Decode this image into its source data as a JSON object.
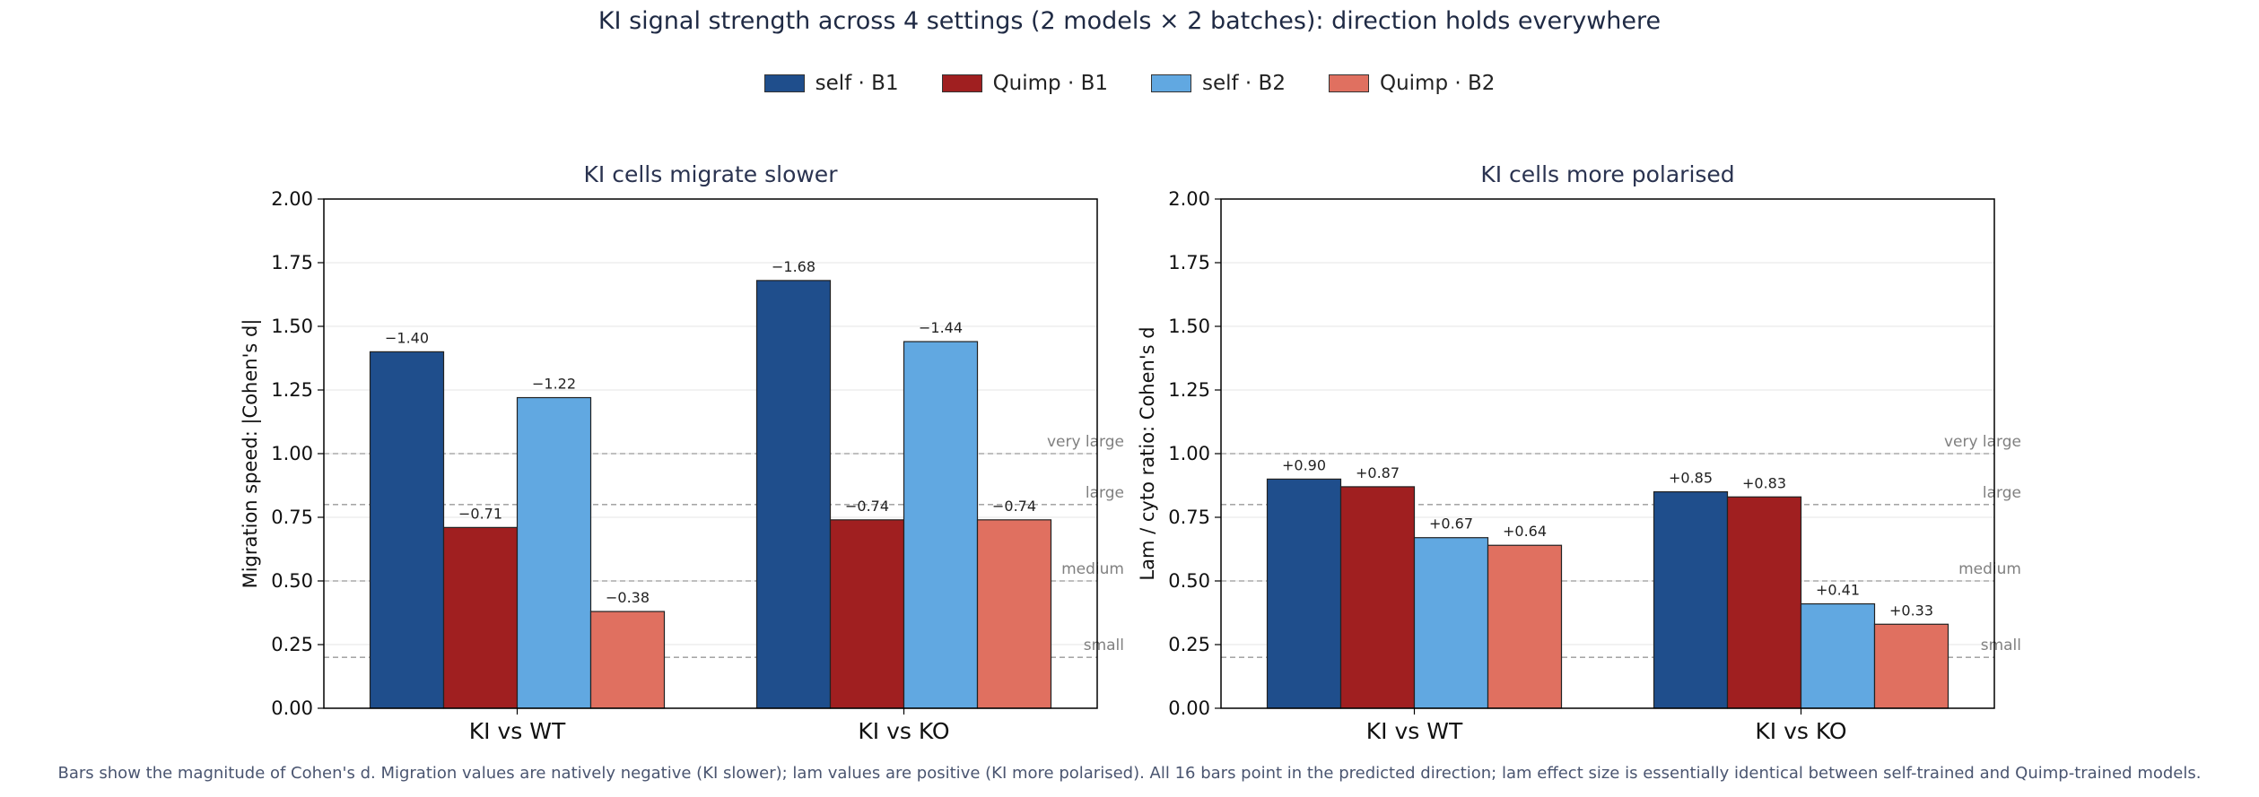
{
  "figure": {
    "title": "KI signal strength across 4 settings (2 models × 2 batches): direction holds everywhere",
    "footnote": "Bars show the magnitude of Cohen's d. Migration values are natively negative (KI slower); lam values are positive (KI more polarised). All 16 bars point in the predicted direction; lam effect size is essentially identical between self-trained and Quimp-trained models.",
    "legend": [
      {
        "label": "self · B1",
        "color": "#1f4e8c"
      },
      {
        "label": "Quimp · B1",
        "color": "#a01f20"
      },
      {
        "label": "self · B2",
        "color": "#61a8e1"
      },
      {
        "label": "Quimp · B2",
        "color": "#e07060"
      }
    ]
  },
  "chart_data": [
    {
      "type": "bar",
      "title": "KI cells migrate slower",
      "ylabel": "Migration speed: |Cohen's d|",
      "xlabel": "",
      "ylim": [
        0,
        2.0
      ],
      "yticks": [
        "0.00",
        "0.25",
        "0.50",
        "0.75",
        "1.00",
        "1.25",
        "1.50",
        "1.75",
        "2.00"
      ],
      "categories": [
        "KI vs WT",
        "KI vs KO"
      ],
      "series": [
        {
          "name": "self · B1",
          "color": "#1f4e8c",
          "values": [
            1.4,
            1.68
          ],
          "labels": [
            "−1.40",
            "−1.68"
          ]
        },
        {
          "name": "Quimp · B1",
          "color": "#a01f20",
          "values": [
            0.71,
            0.74
          ],
          "labels": [
            "−0.71",
            "−0.74"
          ]
        },
        {
          "name": "self · B2",
          "color": "#61a8e1",
          "values": [
            1.22,
            1.44
          ],
          "labels": [
            "−1.22",
            "−1.44"
          ]
        },
        {
          "name": "Quimp · B2",
          "color": "#e07060",
          "values": [
            0.38,
            0.74
          ],
          "labels": [
            "−0.38",
            "−0.74"
          ]
        }
      ],
      "thresholds": [
        {
          "label": "small",
          "value": 0.2
        },
        {
          "label": "medium",
          "value": 0.5
        },
        {
          "label": "large",
          "value": 0.8
        },
        {
          "label": "very large",
          "value": 1.0
        }
      ],
      "grid": "horizontal"
    },
    {
      "type": "bar",
      "title": "KI cells more polarised",
      "ylabel": "Lam / cyto ratio: Cohen's d",
      "xlabel": "",
      "ylim": [
        0,
        2.0
      ],
      "yticks": [
        "0.00",
        "0.25",
        "0.50",
        "0.75",
        "1.00",
        "1.25",
        "1.50",
        "1.75",
        "2.00"
      ],
      "categories": [
        "KI vs WT",
        "KI vs KO"
      ],
      "series": [
        {
          "name": "self · B1",
          "color": "#1f4e8c",
          "values": [
            0.9,
            0.85
          ],
          "labels": [
            "+0.90",
            "+0.85"
          ]
        },
        {
          "name": "Quimp · B1",
          "color": "#a01f20",
          "values": [
            0.87,
            0.83
          ],
          "labels": [
            "+0.87",
            "+0.83"
          ]
        },
        {
          "name": "self · B2",
          "color": "#61a8e1",
          "values": [
            0.67,
            0.41
          ],
          "labels": [
            "+0.67",
            "+0.41"
          ]
        },
        {
          "name": "Quimp · B2",
          "color": "#e07060",
          "values": [
            0.64,
            0.33
          ],
          "labels": [
            "+0.64",
            "+0.33"
          ]
        }
      ],
      "thresholds": [
        {
          "label": "small",
          "value": 0.2
        },
        {
          "label": "medium",
          "value": 0.5
        },
        {
          "label": "large",
          "value": 0.8
        },
        {
          "label": "very large",
          "value": 1.0
        }
      ],
      "grid": "horizontal"
    }
  ]
}
